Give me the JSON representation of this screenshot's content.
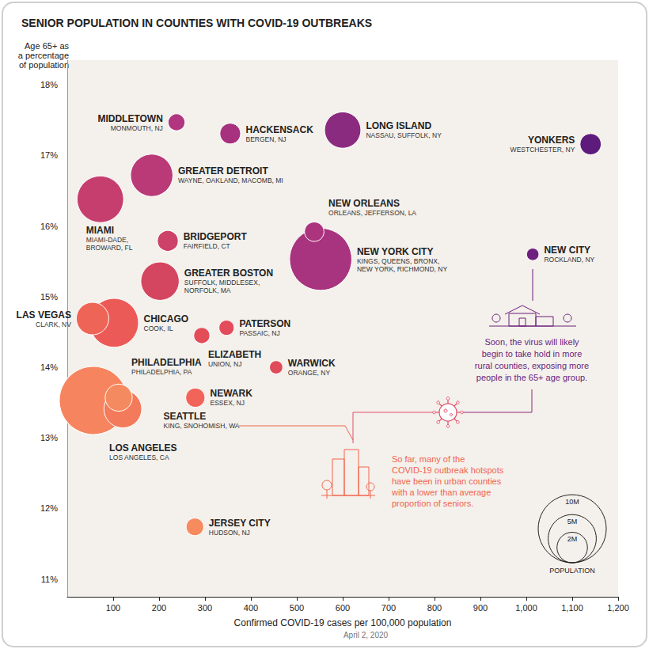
{
  "chart_data": {
    "type": "scatter",
    "title": "SENIOR POPULATION IN COUNTIES WITH COVID-19 OUTBREAKS",
    "x_label": "Confirmed COVID-19 cases per 100,000 population",
    "y_label": "Age 65+ as\na percentage\nof population",
    "note": "April 2, 2020",
    "labels": [
      "MIAMI",
      "GREATER DETROIT",
      "LONG ISLAND",
      "NEW YORK CITY",
      "NEW ORLEANS",
      "LOS ANGELES",
      "SEATTLE",
      "PHILADELPHIA",
      "CHICAGO",
      "LAS VEGAS",
      "GREATER BOSTON",
      "MIDDLETOWN",
      "HACKENSACK",
      "YONKERS",
      "BRIDGEPORT",
      "PATERSON",
      "ELIZABETH",
      "WARWICK",
      "NEWARK",
      "JERSEY CITY",
      "NEW CITY"
    ],
    "sublabels": [
      "MIAMI-DADE,\nBROWARD, FL",
      "WAYNE, OAKLAND, MACOMB, MI",
      "NASSAU, SUFFOLK, NY",
      "KINGS, QUEENS, BRONX,\nNEW YORK, RICHMOND, NY",
      "ORLEANS, JEFFERSON, LA",
      "LOS ANGELES, CA",
      "KING, SNOHOMISH, WA",
      "PHILADELPHIA, PA",
      "COOK, IL",
      "CLARK, NV",
      "SUFFOLK, MIDDLESEX,\nNORFOLK, MA",
      "MONMOUTH, NJ",
      "BERGEN, NJ",
      "WESTCHESTER, NY",
      "FAIRFIELD, CT",
      "PASSAIC, NJ",
      "UNION, NJ",
      "ORANGE, NY",
      "ESSEX, NJ",
      "HUDSON, NJ",
      "ROCKLAND, NY"
    ],
    "x": [
      72,
      184,
      600,
      552,
      538,
      57,
      121,
      112,
      102,
      55,
      202,
      238,
      355,
      1140,
      219,
      347,
      293,
      455,
      279,
      278,
      1014
    ],
    "values": [
      16.38,
      16.72,
      17.36,
      15.53,
      15.92,
      13.53,
      13.41,
      13.57,
      14.63,
      14.69,
      15.22,
      17.47,
      17.31,
      17.16,
      15.79,
      14.56,
      14.45,
      14.0,
      13.57,
      11.74,
      15.6
    ],
    "population": [
      4670000,
      3880000,
      2840000,
      8340000,
      820000,
      10040000,
      3070000,
      1580000,
      5150000,
      2270000,
      3170000,
      620000,
      930000,
      970000,
      940000,
      500000,
      560000,
      380000,
      800000,
      670000,
      330000
    ],
    "colors": [
      "#c63e6e",
      "#b93a77",
      "#8b2b80",
      "#a8337e",
      "#ab347d",
      "#f6845e",
      "#f37a5b",
      "#f48a5f",
      "#ec5a58",
      "#ee6457",
      "#d4465f",
      "#b1357f",
      "#a7317f",
      "#5d1b7b",
      "#cc4268",
      "#e24c5b",
      "#e34d58",
      "#df4b59",
      "#f2645a",
      "#f58b5f",
      "#6e2080"
    ],
    "size_legend": {
      "title": "POPULATION",
      "values": [
        10000000,
        5000000,
        2000000
      ],
      "labels": [
        "10M",
        "5M",
        "2M"
      ]
    },
    "annotations": [
      "So far, many of the\nCOVID-19 outbreak hotspots\nhave been in urban counties\nwith a lower than average\nproportion of seniors.",
      "Soon, the virus will likely\nbegin to take hold in more\nrural counties, exposing more\npeople in the 65+ age group."
    ],
    "xlim": [
      0,
      1200
    ],
    "xticks": [
      100,
      200,
      300,
      400,
      500,
      600,
      700,
      800,
      900,
      {
        "value": 1000,
        "label": "1,000"
      },
      {
        "value": 1100,
        "label": "1,100"
      },
      {
        "value": 1200,
        "label": "1,200"
      }
    ],
    "ylim": [
      10.75,
      18.35
    ],
    "yticks": [
      {
        "value": 11,
        "label": "11%"
      },
      {
        "value": 12,
        "label": "12%"
      },
      {
        "value": 13,
        "label": "13%"
      },
      {
        "value": 14,
        "label": "14%"
      },
      {
        "value": 15,
        "label": "15%"
      },
      {
        "value": 16,
        "label": "16%"
      },
      {
        "value": 17,
        "label": "17%"
      },
      {
        "value": 18,
        "label": "18%"
      }
    ],
    "grid": false
  }
}
